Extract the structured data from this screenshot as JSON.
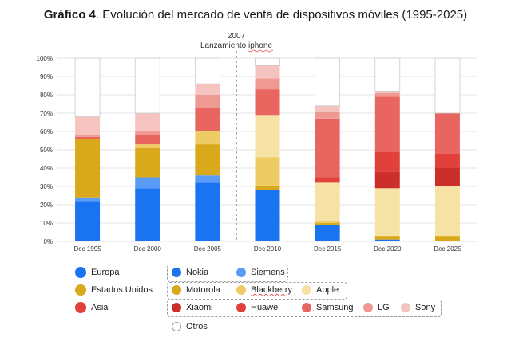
{
  "title": {
    "bold": "Gráfico 4",
    "rest": ". Evolución del mercado de venta de dispositivos móviles (1995-2025)"
  },
  "annotation": {
    "year": "2007",
    "label": "Lanzamiento iphone"
  },
  "colors": {
    "Nokia": "#1a73f0",
    "Siemens": "#5a9cf5",
    "Motorola": "#d9a91b",
    "Blackberry": "#efcb66",
    "Apple": "#f7e2a6",
    "Xiaomi": "#cc2f2a",
    "Huawei": "#e2413b",
    "Samsung": "#e8665f",
    "LG": "#ef9993",
    "Sony": "#f6c4c0",
    "Otros": "#ffffff"
  },
  "chart_data": {
    "type": "bar",
    "stacked": true,
    "categories": [
      "Dec 1995",
      "Dec 2000",
      "Dec 2005",
      "Dec 2010",
      "Dec 2015",
      "Dec 2020",
      "Dec 2025"
    ],
    "ylim": [
      0,
      100
    ],
    "yticks": [
      "0%",
      "10%",
      "20%",
      "30%",
      "40%",
      "50%",
      "60%",
      "70%",
      "80%",
      "90%",
      "100%"
    ],
    "grid": true,
    "series": [
      {
        "name": "Nokia",
        "values": [
          22,
          29,
          32,
          28,
          9,
          1,
          0
        ]
      },
      {
        "name": "Siemens",
        "values": [
          2,
          6,
          4,
          0,
          0,
          0,
          0
        ]
      },
      {
        "name": "Motorola",
        "values": [
          32,
          16,
          17,
          2,
          1,
          2,
          3
        ]
      },
      {
        "name": "Blackberry",
        "values": [
          0,
          2,
          7,
          16,
          1,
          0,
          0
        ]
      },
      {
        "name": "Apple",
        "values": [
          0,
          0,
          0,
          23,
          21,
          26,
          27
        ]
      },
      {
        "name": "Xiaomi",
        "values": [
          0,
          0,
          0,
          0,
          0,
          9,
          10
        ]
      },
      {
        "name": "Huawei",
        "values": [
          0,
          0,
          0,
          0,
          3,
          11,
          8
        ]
      },
      {
        "name": "Samsung",
        "values": [
          1,
          5,
          13,
          14,
          32,
          30,
          22
        ]
      },
      {
        "name": "LG",
        "values": [
          1,
          2,
          7,
          6,
          4,
          2,
          0
        ]
      },
      {
        "name": "Sony",
        "values": [
          10,
          10,
          6,
          7,
          3,
          1,
          0
        ]
      },
      {
        "name": "Otros",
        "values": [
          32,
          30,
          14,
          4,
          26,
          18,
          30
        ]
      }
    ]
  },
  "legend": {
    "regions": [
      {
        "name": "Europa",
        "color": "#1a73f0"
      },
      {
        "name": "Estados Unidos",
        "color": "#d9a91b"
      },
      {
        "name": "Asia",
        "color": "#e2413b"
      }
    ],
    "others_label": "Otros"
  }
}
